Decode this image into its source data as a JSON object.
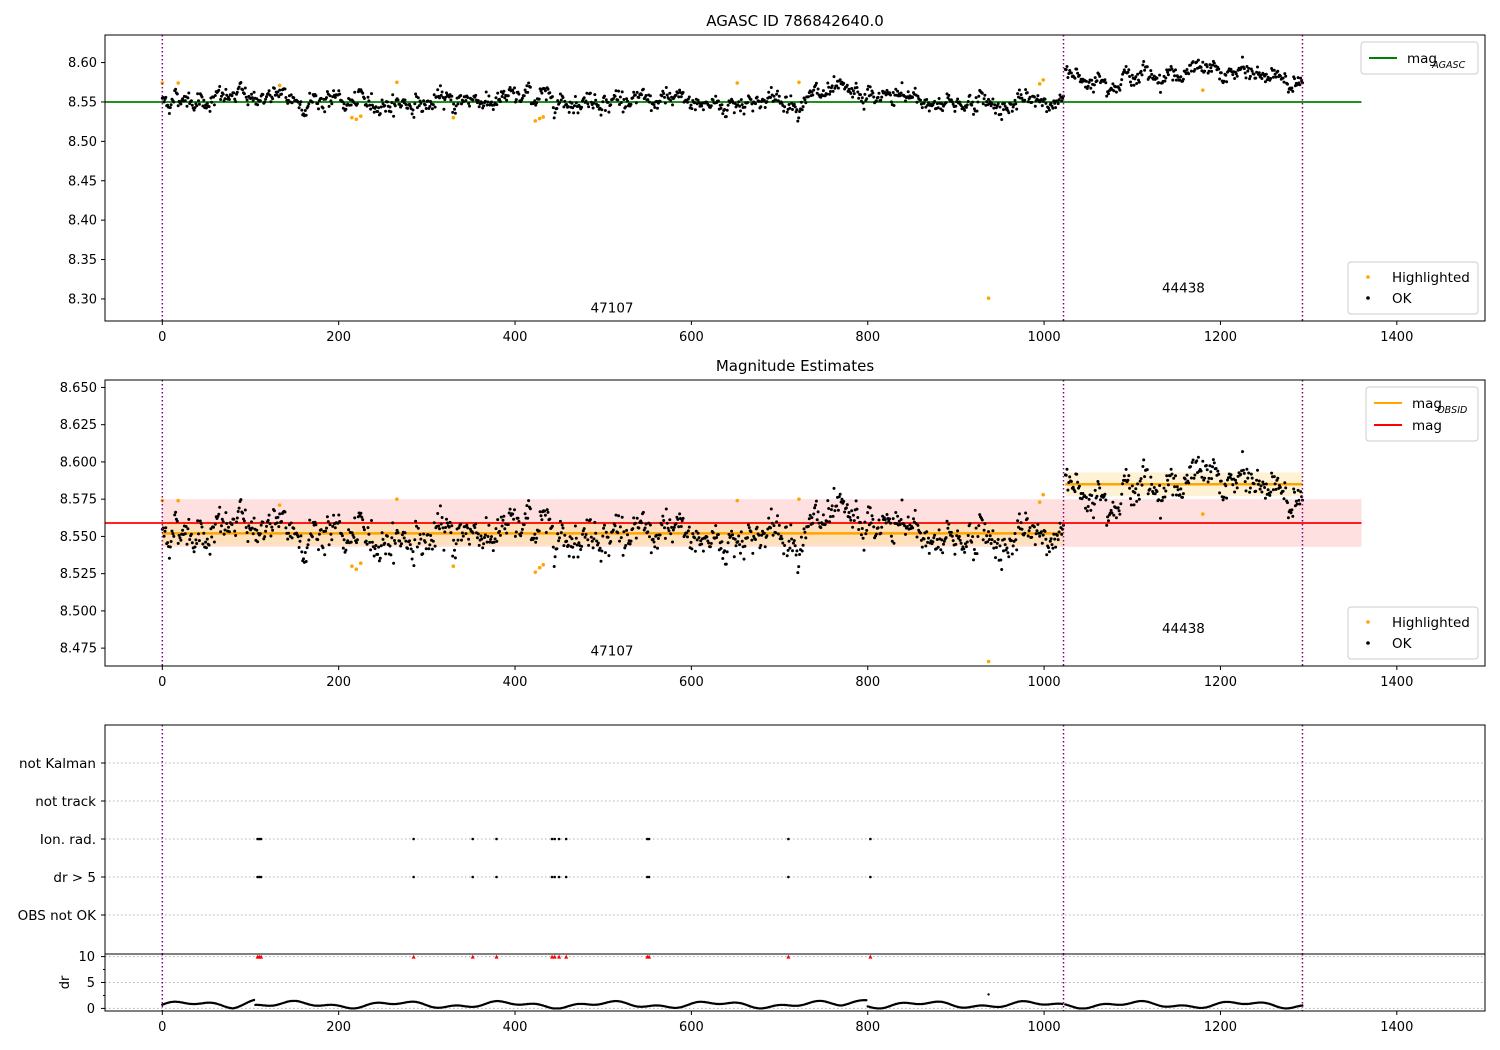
{
  "chart_data": [
    {
      "type": "scatter",
      "title": "AGASC ID 786842640.0",
      "xlabel": "",
      "ylabel": "",
      "xlim": [
        -65,
        1500
      ],
      "ylim": [
        8.272,
        8.635
      ],
      "xticks": [
        0,
        200,
        400,
        600,
        800,
        1000,
        1200,
        1400
      ],
      "xtick_labels": [
        "0",
        "200",
        "400",
        "600",
        "800",
        "1000",
        "1200",
        "1400"
      ],
      "yticks": [
        8.3,
        8.35,
        8.4,
        8.45,
        8.5,
        8.55,
        8.6
      ],
      "ytick_labels": [
        "8.30",
        "8.35",
        "8.40",
        "8.45",
        "8.50",
        "8.55",
        "8.60"
      ],
      "obsid_boundaries": [
        0,
        1022,
        1293
      ],
      "obsid_labels": [
        {
          "text": "47107",
          "x": 510,
          "y": 8.283
        },
        {
          "text": "44438",
          "x": 1158,
          "y": 8.308
        }
      ],
      "series": [
        {
          "name": "mag",
          "name_sub": "AGASC",
          "kind": "line",
          "color": "#008000",
          "x": [
            -65,
            1360
          ],
          "y": [
            8.55,
            8.55
          ]
        },
        {
          "name": "Highlighted",
          "kind": "scatter",
          "color": "#ffa500",
          "x": [
            0,
            18,
            133,
            215,
            220,
            225,
            266,
            330,
            423,
            428,
            432,
            652,
            722,
            937,
            995,
            999,
            1180
          ],
          "y": [
            8.574,
            8.574,
            8.571,
            8.53,
            8.528,
            8.532,
            8.575,
            8.53,
            8.526,
            8.529,
            8.531,
            8.574,
            8.575,
            8.301,
            8.573,
            8.578,
            8.565
          ]
        },
        {
          "name": "OK",
          "kind": "scatter",
          "color": "#000000",
          "generated_from_segments": true
        }
      ],
      "segments": [
        {
          "x_start": 0,
          "x_end": 1022,
          "n": 1022,
          "mean": 8.552,
          "spread": 0.0075
        },
        {
          "x_start": 1024,
          "x_end": 1293,
          "n": 270,
          "mean": 8.585,
          "spread": 0.0065
        }
      ],
      "legend_upper": [
        {
          "label": "mag",
          "sub": "AGASC",
          "color": "#008000",
          "kind": "line"
        }
      ],
      "legend_lower": [
        {
          "label": "Highlighted",
          "color": "#ffa500",
          "kind": "marker"
        },
        {
          "label": "OK",
          "color": "#000000",
          "kind": "marker"
        }
      ],
      "legend_placement": [
        "upper right",
        "lower right"
      ],
      "grid": false
    },
    {
      "type": "scatter",
      "title": "Magnitude Estimates",
      "xlabel": "",
      "ylabel": "",
      "xlim": [
        -65,
        1500
      ],
      "ylim": [
        8.463,
        8.655
      ],
      "xticks": [
        0,
        200,
        400,
        600,
        800,
        1000,
        1200,
        1400
      ],
      "xtick_labels": [
        "0",
        "200",
        "400",
        "600",
        "800",
        "1000",
        "1200",
        "1400"
      ],
      "yticks": [
        8.475,
        8.5,
        8.525,
        8.55,
        8.575,
        8.6,
        8.625,
        8.65
      ],
      "ytick_labels": [
        "8.475",
        "8.500",
        "8.525",
        "8.550",
        "8.575",
        "8.600",
        "8.625",
        "8.650"
      ],
      "obsid_boundaries": [
        0,
        1022,
        1293
      ],
      "obsid_labels": [
        {
          "text": "47107",
          "x": 510,
          "y": 8.47
        },
        {
          "text": "44438",
          "x": 1158,
          "y": 8.485
        }
      ],
      "bands": [
        {
          "x": [
            0,
            1360
          ],
          "y": [
            8.543,
            8.575
          ],
          "color": "#ffdddd",
          "of": "mag"
        },
        {
          "x": [
            0,
            1022
          ],
          "y": [
            8.544,
            8.56
          ],
          "color": "#ffe0b8",
          "of": "mag_OBSID"
        },
        {
          "x": [
            1024,
            1293
          ],
          "y": [
            8.577,
            8.593
          ],
          "color": "#fff0cf",
          "of": "mag_OBSID"
        }
      ],
      "series": [
        {
          "name": "mag",
          "name_sub": "OBSID",
          "kind": "line",
          "color": "#ffa500",
          "x": [
            0,
            1022,
            null,
            1024,
            1293
          ],
          "y": [
            8.552,
            8.552,
            null,
            8.585,
            8.585
          ]
        },
        {
          "name": "mag",
          "kind": "line",
          "color": "#ff0000",
          "x": [
            -65,
            1360
          ],
          "y": [
            8.559,
            8.559
          ]
        },
        {
          "name": "Highlighted",
          "kind": "scatter",
          "color": "#ffa500",
          "x": [
            0,
            18,
            133,
            215,
            220,
            225,
            266,
            330,
            423,
            428,
            432,
            652,
            722,
            937,
            995,
            999,
            1180
          ],
          "y": [
            8.574,
            8.574,
            8.571,
            8.53,
            8.528,
            8.532,
            8.575,
            8.53,
            8.526,
            8.529,
            8.531,
            8.574,
            8.575,
            8.466,
            8.573,
            8.578,
            8.565
          ]
        },
        {
          "name": "OK",
          "kind": "scatter",
          "color": "#000000",
          "generated_from_segments": true
        }
      ],
      "legend_upper": [
        {
          "label": "mag",
          "sub": "OBSID",
          "color": "#ffa500",
          "kind": "line"
        },
        {
          "label": "mag",
          "sub": "",
          "color": "#ff0000",
          "kind": "line"
        }
      ],
      "legend_lower": [
        {
          "label": "Highlighted",
          "color": "#ffa500",
          "kind": "marker"
        },
        {
          "label": "OK",
          "color": "#000000",
          "kind": "marker"
        }
      ],
      "legend_placement": [
        "upper right",
        "lower right"
      ],
      "grid": false
    },
    {
      "type": "scatter",
      "title": "",
      "xlabel": "",
      "ylabel": "",
      "xlim": [
        -65,
        1500
      ],
      "categories": [
        "not Kalman",
        "not track",
        "Ion. rad.",
        "dr > 5",
        "OBS not OK"
      ],
      "flag_points": {
        "Ion. rad.": [
          108,
          110,
          112,
          285,
          352,
          379,
          442,
          445,
          450,
          458,
          550,
          552,
          710,
          803
        ],
        "dr > 5": [
          108,
          110,
          112,
          285,
          352,
          379,
          442,
          445,
          450,
          458,
          550,
          552,
          710,
          803
        ]
      },
      "obsid_boundaries": [
        0,
        1022,
        1293
      ],
      "grid": "y-dotted"
    },
    {
      "type": "line",
      "title": "",
      "xlabel": "",
      "ylabel": "dr",
      "xlim": [
        -65,
        1500
      ],
      "ylim": [
        -0.5,
        10.5
      ],
      "yticks": [
        0,
        5,
        10
      ],
      "ytick_labels": [
        "0",
        "5",
        "10"
      ],
      "xticks": [
        0,
        200,
        400,
        600,
        800,
        1000,
        1200,
        1400
      ],
      "xtick_labels": [
        "0",
        "200",
        "400",
        "600",
        "800",
        "1000",
        "1200",
        "1400"
      ],
      "clipped_markers": {
        "y": 10,
        "color": "#ff0000",
        "x": [
          108,
          110,
          112,
          285,
          352,
          379,
          442,
          445,
          450,
          458,
          550,
          552,
          710,
          803
        ]
      },
      "outlier": {
        "x": 937,
        "y": 2.7
      },
      "series": [
        {
          "name": "dr",
          "kind": "line",
          "color": "#000000",
          "generated": true,
          "range": [
            0,
            2
          ]
        }
      ],
      "obsid_boundaries": [
        0,
        1022,
        1293
      ],
      "grid": "y-dotted"
    }
  ]
}
